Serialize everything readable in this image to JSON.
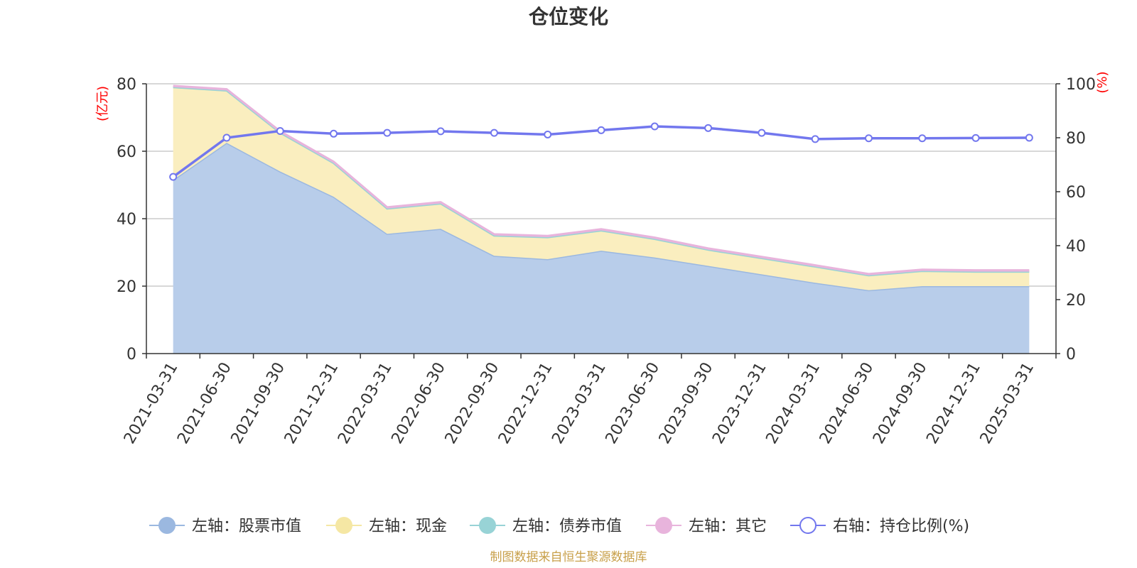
{
  "chart_data": {
    "type": "area",
    "title": "仓位变化",
    "left_axis_unit": "(亿元)",
    "right_axis_unit": "(%)",
    "categories": [
      "2021-03-31",
      "2021-06-30",
      "2021-09-30",
      "2021-12-31",
      "2022-03-31",
      "2022-06-30",
      "2022-09-30",
      "2022-12-31",
      "2023-03-31",
      "2023-06-30",
      "2023-09-30",
      "2023-12-31",
      "2024-03-31",
      "2024-06-30",
      "2024-09-30",
      "2024-12-31",
      "2025-03-31"
    ],
    "left_ylim": [
      0,
      80
    ],
    "left_yticks": [
      "0",
      "20",
      "40",
      "60",
      "80"
    ],
    "right_ylim": [
      0,
      100
    ],
    "right_yticks": [
      "0",
      "20",
      "40",
      "60",
      "80",
      "100"
    ],
    "grid": true,
    "stacked": true,
    "series": [
      {
        "name": "左轴：股票市值",
        "axis": "left",
        "color": "#9bb8e0",
        "fill": "#b8cdea",
        "values": [
          51.5,
          62.5,
          54,
          46.5,
          35.5,
          37,
          29,
          28,
          30.5,
          28.5,
          26,
          23.5,
          21,
          18.8,
          20,
          20,
          20
        ]
      },
      {
        "name": "左轴：现金",
        "axis": "left",
        "color": "#f5e7a4",
        "fill": "#faeebf",
        "values": [
          27.5,
          15.5,
          11.5,
          10,
          7.5,
          7.5,
          6,
          6.5,
          6,
          5.5,
          4.8,
          4.8,
          4.8,
          4.4,
          4.5,
          4.3,
          4.3
        ]
      },
      {
        "name": "左轴：债券市值",
        "axis": "left",
        "color": "#98d3d6",
        "fill": "#98d3d6",
        "values": [
          0,
          0,
          0,
          0,
          0,
          0,
          0,
          0,
          0,
          0,
          0,
          0,
          0,
          0,
          0,
          0,
          0
        ]
      },
      {
        "name": "左轴：其它",
        "axis": "left",
        "color": "#e8b4dc",
        "fill": "#e8b4dc",
        "values": [
          0.4,
          0.4,
          0.4,
          0.4,
          0.4,
          0.4,
          0.4,
          0.4,
          0.4,
          0.4,
          0.4,
          0.4,
          0.4,
          0.4,
          0.4,
          0.4,
          0.4
        ]
      },
      {
        "name": "右轴：持仓比例(%)",
        "axis": "right",
        "color": "#7277ee",
        "fill": "none",
        "values": [
          65.5,
          80,
          82.5,
          81.5,
          81.8,
          82.4,
          81.8,
          81.2,
          82.8,
          84.2,
          83.6,
          81.8,
          79.5,
          79.8,
          79.8,
          79.9,
          80
        ]
      }
    ],
    "legend_position": "bottom",
    "source": "制图数据来自恒生聚源数据库"
  }
}
